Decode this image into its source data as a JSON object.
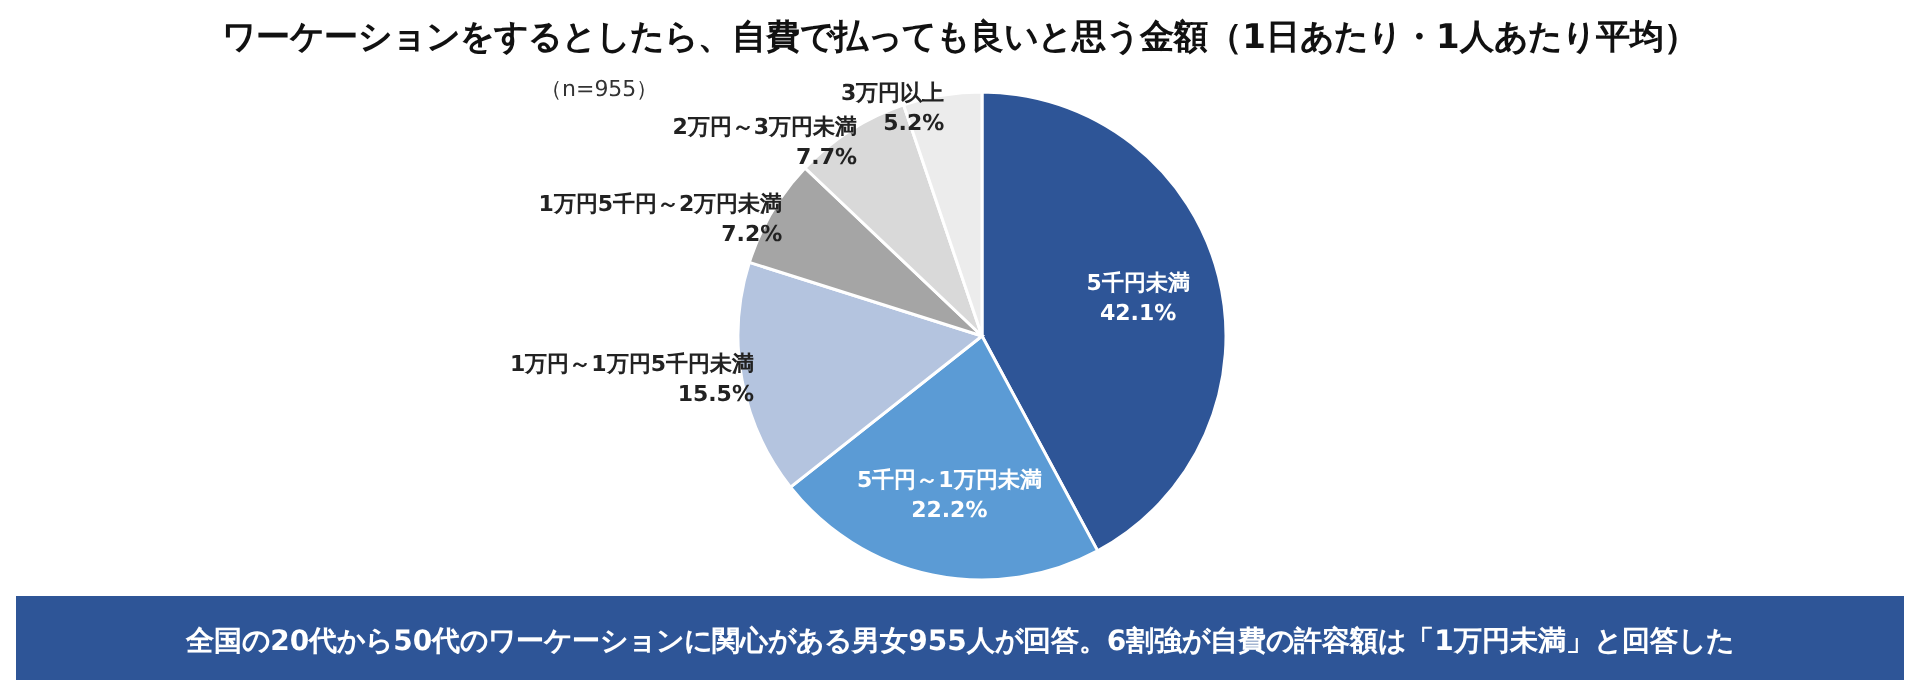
{
  "chart_data": {
    "type": "pie",
    "title": "ワーケーションをするとしたら、自費で払っても良いと思う金額（1日あたり・1人あたり平均）",
    "categories": [
      "5千円未満",
      "5千円～1万円未満",
      "1万円～1万円5千円未満",
      "1万円5千円～2万円未満",
      "2万円～3万円未満",
      "3万円以上"
    ],
    "values": [
      42.1,
      22.2,
      15.5,
      7.2,
      7.7,
      5.2
    ],
    "value_labels": [
      "42.1%",
      "22.2%",
      "15.5%",
      "7.2%",
      "7.7%",
      "5.2%"
    ],
    "colors": [
      "#2e5597",
      "#5b9bd5",
      "#b4c4df",
      "#a5a5a5",
      "#d9d9d9",
      "#ececec"
    ],
    "annotations": [
      "（n=955）",
      "全国の20代から50代のワーケーションに関心がある男女955人が回答。6割強が自費の許容額は「1万円未満」と回答した"
    ]
  }
}
